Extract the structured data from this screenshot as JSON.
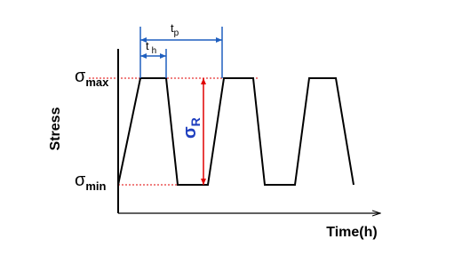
{
  "axes": {
    "y_label": "Stress",
    "x_label": "Time(h)"
  },
  "levels": {
    "max": {
      "symbol": "σ",
      "sub": "max"
    },
    "min": {
      "symbol": "σ",
      "sub": "min"
    }
  },
  "dimensions": {
    "period": {
      "symbol": "t",
      "sub": "p"
    },
    "hold": {
      "symbol": "t",
      "sub": "h"
    },
    "range": {
      "symbol": "σ",
      "sub": "R"
    }
  }
}
